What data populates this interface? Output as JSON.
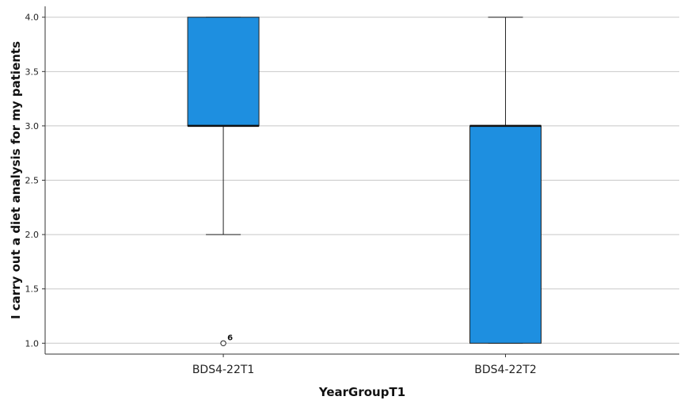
{
  "chart_data": {
    "type": "boxplot",
    "xlabel": "YearGroupT1",
    "ylabel": "I carry out a diet analysis for my patients",
    "ylim": [
      0.9,
      4.1
    ],
    "yticks": [
      "1.0",
      "1.5",
      "2.0",
      "2.5",
      "3.0",
      "3.5",
      "4.0"
    ],
    "grid": true,
    "box_color": "#1e8fe0",
    "categories": [
      "BDS4-22T1",
      "BDS4-22T2"
    ],
    "boxes": [
      {
        "category": "BDS4-22T1",
        "whisker_low": 2.0,
        "q1": 3.0,
        "median": 3.0,
        "q3": 4.0,
        "whisker_high": 4.0,
        "outliers": [
          {
            "value": 1.0,
            "label": "6"
          }
        ]
      },
      {
        "category": "BDS4-22T2",
        "whisker_low": 1.0,
        "q1": 1.0,
        "median": 3.0,
        "q3": 3.0,
        "whisker_high": 4.0,
        "outliers": []
      }
    ]
  }
}
